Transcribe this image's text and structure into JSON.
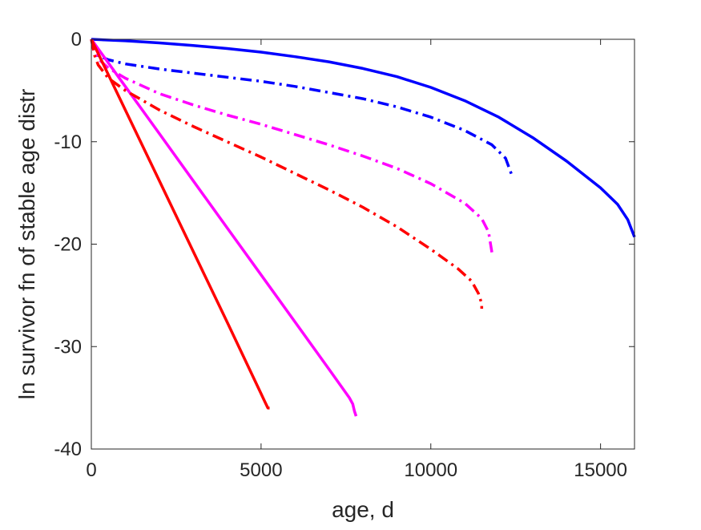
{
  "chart_data": {
    "type": "line",
    "title": "",
    "xlabel": "age, d",
    "ylabel": "ln survivor fn of stable age distr",
    "xlim": [
      0,
      16000
    ],
    "ylim": [
      -40,
      0
    ],
    "xticks": [
      0,
      5000,
      10000,
      15000
    ],
    "yticks": [
      0,
      -10,
      -20,
      -30,
      -40
    ],
    "xtick_labels": [
      "0",
      "5000",
      "10000",
      "15000"
    ],
    "ytick_labels": [
      "0",
      "-10",
      "-20",
      "-30",
      "-40"
    ],
    "grid": false,
    "legend": "none",
    "series": [
      {
        "color": "#0000ff",
        "style": "solid",
        "x": [
          0,
          1000,
          2000,
          3000,
          4000,
          5000,
          6000,
          7000,
          8000,
          9000,
          10000,
          11000,
          12000,
          13000,
          14000,
          15000,
          15500,
          15800,
          16000
        ],
        "y": [
          0,
          -0.15,
          -0.35,
          -0.6,
          -0.9,
          -1.25,
          -1.7,
          -2.2,
          -2.85,
          -3.65,
          -4.7,
          -6.0,
          -7.6,
          -9.6,
          -11.9,
          -14.5,
          -16.1,
          -17.6,
          -19.3
        ]
      },
      {
        "color": "#0000ff",
        "style": "dashdot",
        "x": [
          0,
          100,
          200,
          500,
          1000,
          2000,
          3000,
          4000,
          5000,
          6000,
          7000,
          8000,
          9000,
          10000,
          11000,
          11800,
          12200,
          12400
        ],
        "y": [
          0,
          -1.2,
          -1.6,
          -2.0,
          -2.4,
          -2.9,
          -3.3,
          -3.7,
          -4.1,
          -4.6,
          -5.2,
          -5.8,
          -6.6,
          -7.6,
          -8.9,
          -10.3,
          -11.6,
          -13.4
        ]
      },
      {
        "color": "#ff00ff",
        "style": "solid",
        "x": [
          0,
          1000,
          2000,
          3000,
          4000,
          5000,
          6000,
          7000,
          7600,
          7700,
          7750,
          7800
        ],
        "y": [
          0,
          -4.6,
          -9.2,
          -13.8,
          -18.4,
          -23.0,
          -27.6,
          -32.2,
          -35.0,
          -35.6,
          -36.3,
          -36.8
        ]
      },
      {
        "color": "#ff00ff",
        "style": "dashdot",
        "x": [
          0,
          100,
          200,
          500,
          1000,
          2000,
          3000,
          4000,
          5000,
          6000,
          7000,
          8000,
          9000,
          10000,
          11000,
          11500,
          11700,
          11800
        ],
        "y": [
          0,
          -1.3,
          -1.9,
          -2.8,
          -3.8,
          -5.3,
          -6.4,
          -7.4,
          -8.3,
          -9.3,
          -10.3,
          -11.4,
          -12.6,
          -14.1,
          -16.0,
          -17.5,
          -18.8,
          -20.8
        ]
      },
      {
        "color": "#ff0000",
        "style": "solid",
        "x": [
          0,
          1000,
          2000,
          3000,
          4000,
          5000,
          5100,
          5200,
          5250
        ],
        "y": [
          0,
          -6.9,
          -13.8,
          -20.7,
          -27.6,
          -34.6,
          -35.3,
          -36.0,
          -36.0
        ]
      },
      {
        "color": "#ff0000",
        "style": "dashdot",
        "x": [
          0,
          100,
          200,
          500,
          1000,
          2000,
          3000,
          4000,
          5000,
          6000,
          7000,
          8000,
          9000,
          10000,
          10800,
          11200,
          11400,
          11500,
          11500
        ],
        "y": [
          0,
          -1.6,
          -2.5,
          -3.8,
          -5.0,
          -6.9,
          -8.5,
          -10.0,
          -11.5,
          -13.1,
          -14.7,
          -16.4,
          -18.3,
          -20.5,
          -22.4,
          -23.6,
          -24.8,
          -25.8,
          -26.3
        ]
      }
    ]
  }
}
